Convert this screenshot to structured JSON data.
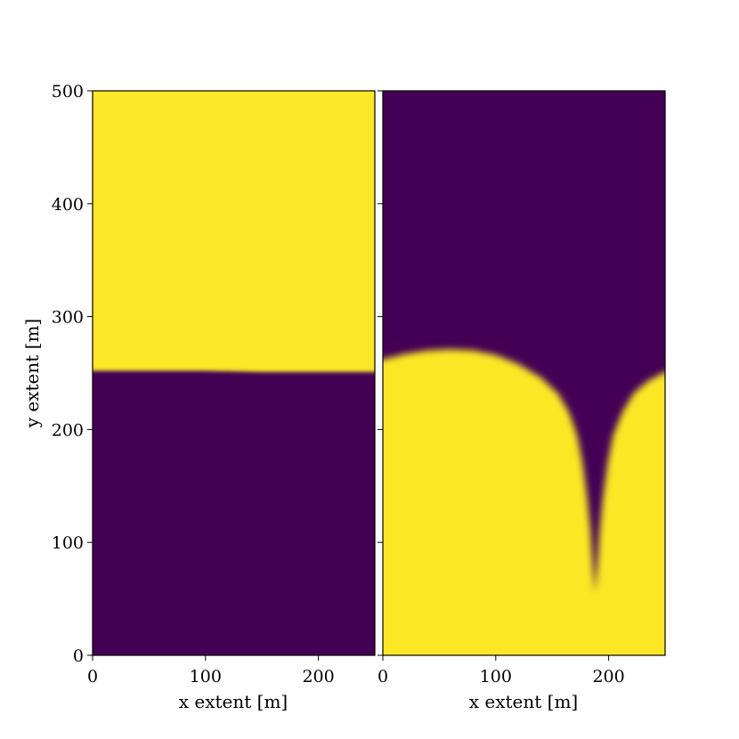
{
  "chart_data": [
    {
      "type": "heatmap",
      "panel": "left",
      "xlabel": "x extent [m]",
      "ylabel": "y extent [m]",
      "xlim": [
        0,
        250
      ],
      "ylim": [
        0,
        500
      ],
      "xticks": [
        0,
        100,
        200
      ],
      "yticks": [
        0,
        100,
        200,
        300,
        400,
        500
      ],
      "colormap": "viridis",
      "low_color": "#440154",
      "high_color": "#fde725",
      "field": {
        "description_values": "yellow above interface, purple below",
        "upper_value": "high",
        "lower_value": "low",
        "interface_y": [
          [
            0,
            252
          ],
          [
            50,
            252
          ],
          [
            100,
            252
          ],
          [
            150,
            251
          ],
          [
            200,
            251
          ],
          [
            250,
            251
          ]
        ]
      }
    },
    {
      "type": "heatmap",
      "panel": "right",
      "xlabel": "x extent [m]",
      "ylabel": "",
      "xlim": [
        0,
        250
      ],
      "ylim": [
        0,
        500
      ],
      "xticks": [
        0,
        100,
        200
      ],
      "yticks": [
        0,
        100,
        200,
        300,
        400,
        500
      ],
      "colormap": "viridis",
      "low_color": "#440154",
      "high_color": "#fde725",
      "field": {
        "upper_value": "low",
        "lower_value": "high",
        "interface_y": [
          [
            0,
            262
          ],
          [
            20,
            267
          ],
          [
            40,
            270
          ],
          [
            60,
            271
          ],
          [
            80,
            270
          ],
          [
            100,
            266
          ],
          [
            120,
            258
          ],
          [
            140,
            246
          ],
          [
            155,
            232
          ],
          [
            165,
            215
          ],
          [
            172,
            195
          ],
          [
            177,
            170
          ],
          [
            181,
            140
          ],
          [
            184,
            110
          ],
          [
            186,
            80
          ],
          [
            188,
            55
          ],
          [
            190,
            80
          ],
          [
            192,
            110
          ],
          [
            195,
            140
          ],
          [
            199,
            170
          ],
          [
            204,
            195
          ],
          [
            212,
            215
          ],
          [
            222,
            232
          ],
          [
            235,
            243
          ],
          [
            250,
            251
          ]
        ]
      }
    }
  ]
}
